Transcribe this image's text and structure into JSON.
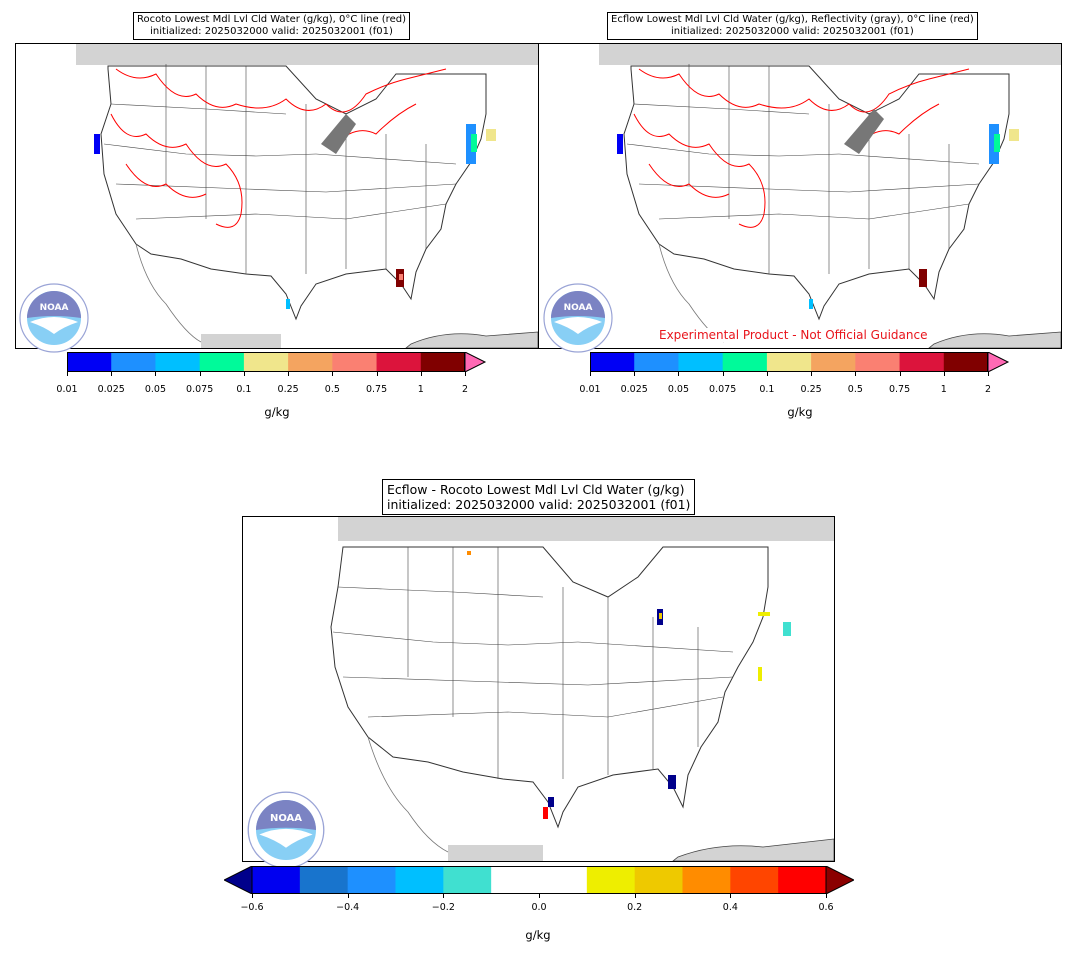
{
  "panel_left": {
    "title_line1": "Rocoto Lowest Mdl Lvl Cld Water (g/kg), 0°C line (red)",
    "title_line2": "initialized: 2025032000 valid: 2025032001 (f01)",
    "colorbar": {
      "ticks": [
        "0.01",
        "0.025",
        "0.05",
        "0.075",
        "0.1",
        "0.25",
        "0.5",
        "0.75",
        "1",
        "2"
      ],
      "colors": [
        "#0000f5",
        "#1e90ff",
        "#00bfff",
        "#00fa9a",
        "#f0e68c",
        "#f4a460",
        "#fa8072",
        "#dc143c",
        "#800000"
      ],
      "extend_color": "#ff69b4",
      "unit": "g/kg"
    },
    "logo_text": "NOAA"
  },
  "panel_right": {
    "title_line1": "Ecflow Lowest Mdl Lvl Cld Water (g/kg), Reflectivity (gray), 0°C line (red)",
    "title_line2": "initialized: 2025032000 valid: 2025032001 (f01)",
    "colorbar": {
      "ticks": [
        "0.01",
        "0.025",
        "0.05",
        "0.075",
        "0.1",
        "0.25",
        "0.5",
        "0.75",
        "1",
        "2"
      ],
      "colors": [
        "#0000f5",
        "#1e90ff",
        "#00bfff",
        "#00fa9a",
        "#f0e68c",
        "#f4a460",
        "#fa8072",
        "#dc143c",
        "#800000"
      ],
      "extend_color": "#ff69b4",
      "unit": "g/kg"
    },
    "disclaimer": "Experimental Product - Not Official Guidance",
    "logo_text": "NOAA"
  },
  "panel_diff": {
    "title_line1": "Ecflow - Rocoto Lowest Mdl Lvl Cld Water (g/kg)",
    "title_line2": "initialized: 2025032000 valid: 2025032001 (f01)",
    "colorbar": {
      "ticks": [
        "−0.6",
        "−0.4",
        "−0.2",
        "0.0",
        "0.2",
        "0.4",
        "0.6"
      ],
      "colors": [
        "#0000f0",
        "#1874cd",
        "#1e90ff",
        "#00bfff",
        "#40e0d0",
        "#ffffff",
        "#ffffff",
        "#eeee00",
        "#eec900",
        "#ff8c00",
        "#ff4500",
        "#ff0000"
      ],
      "low_extend_color": "#00008b",
      "high_extend_color": "#8b0000",
      "unit": "g/kg"
    },
    "logo_text": "NOAA"
  },
  "map_colors": {
    "freezing_line": "#ff0000",
    "land_gray": "#d3d3d3",
    "reflectivity": "#777777",
    "border": "#333333"
  }
}
